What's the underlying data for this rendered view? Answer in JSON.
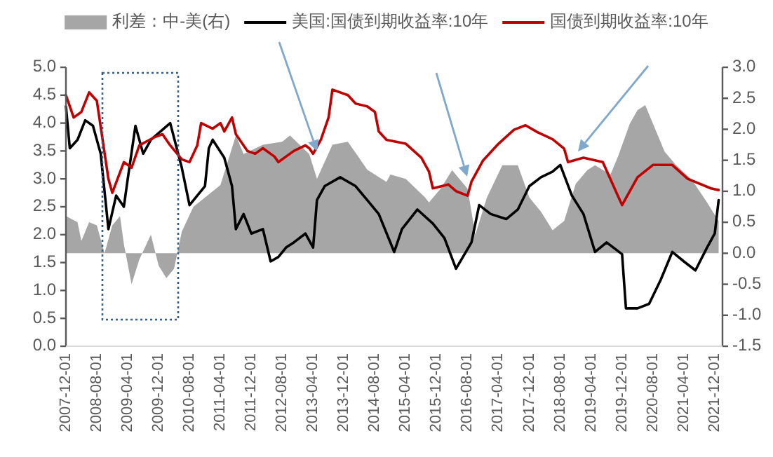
{
  "chart_data": {
    "type": "line",
    "legend": "top",
    "grid": false,
    "xlim": [
      "2007-12",
      "2022-02"
    ],
    "xticks": [
      {
        "value": "2007-12",
        "label": "2007-12-01"
      },
      {
        "value": "2008-08",
        "label": "2008-08-01"
      },
      {
        "value": "2009-04",
        "label": "2009-04-01"
      },
      {
        "value": "2009-12",
        "label": "2009-12-01"
      },
      {
        "value": "2010-08",
        "label": "2010-08-01"
      },
      {
        "value": "2011-04",
        "label": "2011-04-01"
      },
      {
        "value": "2011-12",
        "label": "2011-12-01"
      },
      {
        "value": "2012-08",
        "label": "2012-08-01"
      },
      {
        "value": "2013-04",
        "label": "2013-04-01"
      },
      {
        "value": "2013-12",
        "label": "2013-12-01"
      },
      {
        "value": "2014-08",
        "label": "2014-08-01"
      },
      {
        "value": "2015-04",
        "label": "2015-04-01"
      },
      {
        "value": "2015-12",
        "label": "2015-12-01"
      },
      {
        "value": "2016-08",
        "label": "2016-08-01"
      },
      {
        "value": "2017-04",
        "label": "2017-04-01"
      },
      {
        "value": "2017-12",
        "label": "2017-12-01"
      },
      {
        "value": "2018-08",
        "label": "2018-08-01"
      },
      {
        "value": "2019-04",
        "label": "2019-04-01"
      },
      {
        "value": "2019-12",
        "label": "2019-12-01"
      },
      {
        "value": "2020-08",
        "label": "2020-08-01"
      },
      {
        "value": "2021-04",
        "label": "2021-04-01"
      },
      {
        "value": "2021-12",
        "label": "2021-12-01"
      }
    ],
    "ylim": [
      0,
      5
    ],
    "yticks": [
      {
        "value": 0,
        "label": "0.0"
      },
      {
        "value": 0.5,
        "label": "0.5"
      },
      {
        "value": 1,
        "label": "1.0"
      },
      {
        "value": 1.5,
        "label": "1.5"
      },
      {
        "value": 2,
        "label": "2.0"
      },
      {
        "value": 2.5,
        "label": "2.5"
      },
      {
        "value": 3,
        "label": "3.0"
      },
      {
        "value": 3.5,
        "label": "3.5"
      },
      {
        "value": 4,
        "label": "4.0"
      },
      {
        "value": 4.5,
        "label": "4.5"
      },
      {
        "value": 5,
        "label": "5.0"
      }
    ],
    "y2lim": [
      -1.5,
      3
    ],
    "y2ticks": [
      {
        "value": -1.5,
        "label": "-1.5"
      },
      {
        "value": -1,
        "label": "-1.0"
      },
      {
        "value": -0.5,
        "label": "-0.5"
      },
      {
        "value": 0,
        "label": "0.0"
      },
      {
        "value": 0.5,
        "label": "0.5"
      },
      {
        "value": 1,
        "label": "1.0"
      },
      {
        "value": 1.5,
        "label": "1.5"
      },
      {
        "value": 2,
        "label": "2.0"
      },
      {
        "value": 2.5,
        "label": "2.5"
      },
      {
        "value": 3,
        "label": "3.0"
      }
    ],
    "series": [
      {
        "name": "利差：中-美(右)",
        "type": "area",
        "axis": "y2",
        "color": "#a6a6a6",
        "x": [
          "2007-12",
          "2008-03",
          "2008-04",
          "2008-06",
          "2008-08",
          "2008-10",
          "2008-12",
          "2009-02",
          "2009-03",
          "2009-05",
          "2009-07",
          "2009-10",
          "2009-12",
          "2010-02",
          "2010-04",
          "2010-06",
          "2010-09",
          "2010-12",
          "2011-04",
          "2011-08",
          "2011-10",
          "2012-03",
          "2012-08",
          "2012-10",
          "2013-03",
          "2013-05",
          "2013-09",
          "2014-01",
          "2014-06",
          "2014-11",
          "2014-12",
          "2015-04",
          "2015-09",
          "2015-10",
          "2016-01",
          "2016-04",
          "2016-08",
          "2016-10",
          "2017-01",
          "2017-05",
          "2017-09",
          "2017-12",
          "2018-03",
          "2018-06",
          "2018-09",
          "2018-12",
          "2019-03",
          "2019-05",
          "2019-09",
          "2019-11",
          "2020-02",
          "2020-04",
          "2020-06",
          "2020-08",
          "2020-11",
          "2021-02",
          "2021-06",
          "2021-10",
          "2022-01"
        ],
        "values": [
          0.6,
          0.5,
          0.2,
          0.5,
          0.45,
          0,
          0.45,
          0.6,
          0.15,
          -0.5,
          -0.1,
          0.3,
          -0.2,
          -0.4,
          -0.25,
          0.35,
          0.75,
          0.9,
          1.1,
          1.9,
          1.6,
          1.75,
          1.8,
          1.9,
          1.6,
          1.2,
          1.75,
          1.8,
          1.35,
          1.15,
          1.27,
          1.2,
          0.9,
          0.82,
          1.04,
          1.34,
          1.04,
          0.3,
          0.9,
          1.42,
          1.42,
          0.9,
          0.67,
          0.37,
          0.52,
          1.12,
          1.34,
          1.42,
          1.27,
          1.57,
          2.09,
          2.31,
          2.39,
          2.09,
          1.64,
          1.42,
          1.19,
          0.82,
          0.52
        ]
      },
      {
        "name": "美国:国债到期收益率:10年",
        "color": "#000000",
        "x": [
          "2007-12",
          "2008-01",
          "2008-03",
          "2008-05",
          "2008-07",
          "2008-09",
          "2008-11",
          "2009-01",
          "2009-03",
          "2009-04",
          "2009-06",
          "2009-08",
          "2009-10",
          "2010-01",
          "2010-03",
          "2010-06",
          "2010-08",
          "2010-10",
          "2010-12",
          "2011-01",
          "2011-02",
          "2011-05",
          "2011-07",
          "2011-08",
          "2011-10",
          "2011-12",
          "2012-03",
          "2012-05",
          "2012-07",
          "2012-09",
          "2012-11",
          "2013-02",
          "2013-04",
          "2013-05",
          "2013-07",
          "2013-11",
          "2014-03",
          "2014-06",
          "2014-09",
          "2015-01",
          "2015-03",
          "2015-07",
          "2015-11",
          "2016-02",
          "2016-05",
          "2016-09",
          "2016-11",
          "2017-02",
          "2017-06",
          "2017-09",
          "2017-12",
          "2018-03",
          "2018-06",
          "2018-08",
          "2018-11",
          "2019-02",
          "2019-05",
          "2019-08",
          "2019-12",
          "2020-01",
          "2020-04",
          "2020-07",
          "2020-10",
          "2021-01",
          "2021-04",
          "2021-07",
          "2021-10",
          "2021-12",
          "2022-01"
        ],
        "values": [
          4.3,
          3.55,
          3.7,
          4.05,
          3.95,
          3.45,
          2.1,
          2.7,
          2.5,
          3.0,
          3.95,
          3.45,
          3.7,
          3.88,
          4.0,
          3.2,
          2.53,
          2.7,
          2.87,
          3.55,
          3.7,
          3.38,
          2.87,
          2.1,
          2.37,
          2.02,
          2.1,
          1.52,
          1.6,
          1.77,
          1.86,
          2.02,
          1.77,
          2.62,
          2.87,
          3.03,
          2.87,
          2.62,
          2.37,
          1.69,
          2.1,
          2.45,
          2.2,
          1.94,
          1.39,
          1.86,
          2.53,
          2.37,
          2.28,
          2.45,
          2.87,
          3.03,
          3.13,
          3.25,
          2.7,
          2.37,
          1.69,
          1.86,
          1.65,
          0.68,
          0.68,
          0.76,
          1.19,
          1.69,
          1.52,
          1.36,
          1.77,
          2.02,
          2.62
        ]
      },
      {
        "name": "国债到期收益率:10年",
        "color": "#c00000",
        "x": [
          "2007-12",
          "2008-02",
          "2008-04",
          "2008-06",
          "2008-08",
          "2008-11",
          "2008-12",
          "2009-03",
          "2009-05",
          "2009-07",
          "2009-11",
          "2010-01",
          "2010-03",
          "2010-06",
          "2010-08",
          "2010-10",
          "2010-11",
          "2011-02",
          "2011-04",
          "2011-05",
          "2011-07",
          "2011-08",
          "2011-11",
          "2012-01",
          "2012-03",
          "2012-06",
          "2012-07",
          "2012-11",
          "2013-02",
          "2013-03",
          "2013-04",
          "2013-06",
          "2013-08",
          "2013-09",
          "2014-01",
          "2014-03",
          "2014-06",
          "2014-08",
          "2014-09",
          "2014-11",
          "2015-04",
          "2015-08",
          "2015-10",
          "2015-11",
          "2016-03",
          "2016-05",
          "2016-08",
          "2016-09",
          "2016-12",
          "2017-04",
          "2017-08",
          "2017-11",
          "2018-02",
          "2018-06",
          "2018-09",
          "2018-10",
          "2019-02",
          "2019-07",
          "2019-12",
          "2020-04",
          "2020-08",
          "2021-01",
          "2021-05",
          "2021-11",
          "2022-01"
        ],
        "values": [
          4.5,
          4.1,
          4.2,
          4.55,
          4.4,
          3.0,
          2.75,
          3.3,
          3.2,
          3.6,
          3.75,
          3.8,
          3.6,
          3.35,
          3.3,
          3.6,
          4.0,
          3.9,
          4.0,
          3.85,
          4.1,
          3.8,
          3.5,
          3.45,
          3.55,
          3.4,
          3.3,
          3.5,
          3.6,
          3.55,
          3.45,
          3.7,
          4.1,
          4.6,
          4.5,
          4.35,
          4.3,
          4.2,
          3.85,
          3.7,
          3.63,
          3.38,
          3.13,
          2.83,
          2.9,
          2.78,
          2.7,
          2.95,
          3.33,
          3.63,
          3.88,
          3.96,
          3.84,
          3.71,
          3.54,
          3.3,
          3.38,
          3.3,
          2.53,
          3.03,
          3.25,
          3.25,
          3.0,
          2.83,
          2.8
        ]
      }
    ]
  }
}
